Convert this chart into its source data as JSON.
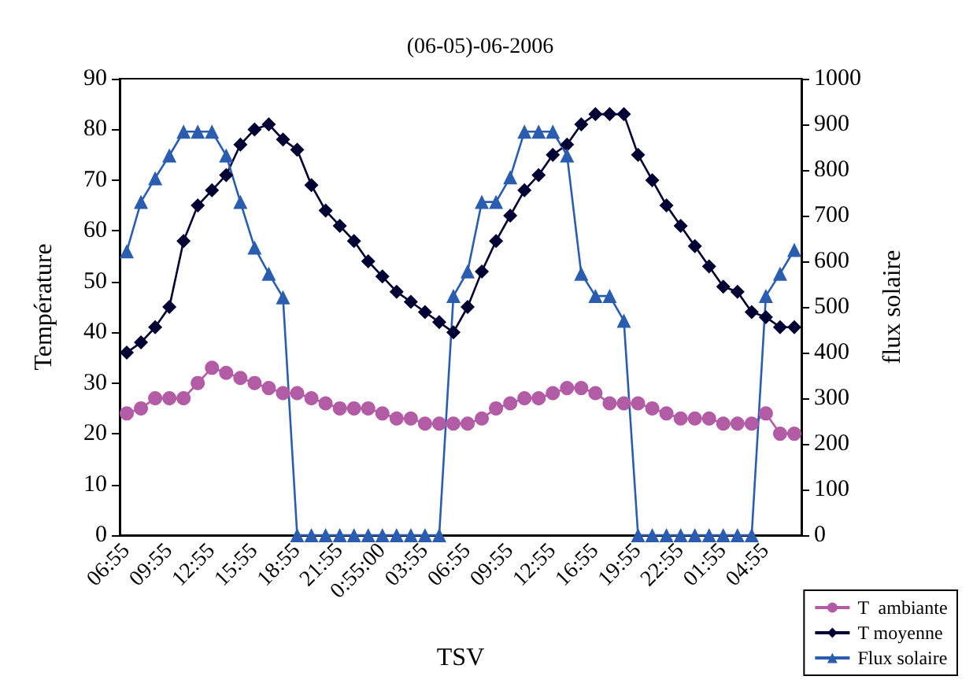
{
  "chart_data": {
    "type": "line",
    "title": "(06-05)-06-2006",
    "xlabel": "TSV",
    "ylabel": "Température",
    "y2label": "flux solaire",
    "categories": [
      "06:55",
      null,
      null,
      "09:55",
      null,
      null,
      "12:55",
      null,
      null,
      "15:55",
      null,
      null,
      "18:55",
      null,
      null,
      "21:55",
      null,
      null,
      "0:55:00",
      null,
      null,
      "03:55",
      null,
      null,
      "06:55",
      null,
      null,
      "09:55",
      null,
      null,
      "12:55",
      null,
      null,
      "16:55",
      null,
      null,
      "19:55",
      null,
      null,
      "22:55",
      null,
      null,
      "01:55",
      null,
      null,
      "04:55",
      null,
      null
    ],
    "series": [
      {
        "name": "T  ambiante",
        "color": "#b35ca6",
        "marker": "circle",
        "values": [
          24,
          25,
          27,
          27,
          27,
          30,
          33,
          32,
          31,
          30,
          29,
          28,
          28,
          27,
          26,
          25,
          25,
          25,
          24,
          23,
          23,
          22,
          22,
          22,
          22,
          23,
          25,
          26,
          27,
          27,
          28,
          29,
          29,
          28,
          26,
          26,
          26,
          25,
          24,
          23,
          23,
          23,
          22,
          22,
          22,
          24,
          20,
          20
        ]
      },
      {
        "name": "T moyenne",
        "color": "#000033",
        "marker": "diamond",
        "values": [
          36,
          38,
          41,
          45,
          58,
          65,
          68,
          71,
          77,
          80,
          81,
          78,
          76,
          69,
          64,
          61,
          58,
          54,
          51,
          48,
          46,
          44,
          42,
          40,
          45,
          52,
          58,
          63,
          68,
          71,
          75,
          77,
          81,
          83,
          83,
          83,
          75,
          70,
          65,
          61,
          57,
          53,
          49,
          48,
          44,
          43,
          41,
          41
        ]
      },
      {
        "name": "Flux solaire",
        "color": "#2a5db0",
        "marker": "triangle",
        "axis": "y2",
        "values": [
          622,
          730,
          782,
          832,
          884,
          884,
          884,
          832,
          730,
          630,
          573,
          521,
          0,
          0,
          0,
          0,
          0,
          0,
          0,
          0,
          0,
          0,
          0,
          524,
          578,
          730,
          730,
          784,
          884,
          884,
          884,
          832,
          573,
          524,
          524,
          470,
          0,
          0,
          0,
          0,
          0,
          0,
          0,
          0,
          0,
          524,
          573,
          625
        ]
      }
    ],
    "ylim": [
      0,
      90
    ],
    "yticks": [
      0,
      10,
      20,
      30,
      40,
      50,
      60,
      70,
      80,
      90
    ],
    "y2lim": [
      0,
      1000
    ],
    "y2ticks": [
      0,
      100,
      200,
      300,
      400,
      500,
      600,
      700,
      800,
      900,
      1000
    ],
    "grid": false,
    "legend": "bottom right",
    "line_style": "solid"
  }
}
